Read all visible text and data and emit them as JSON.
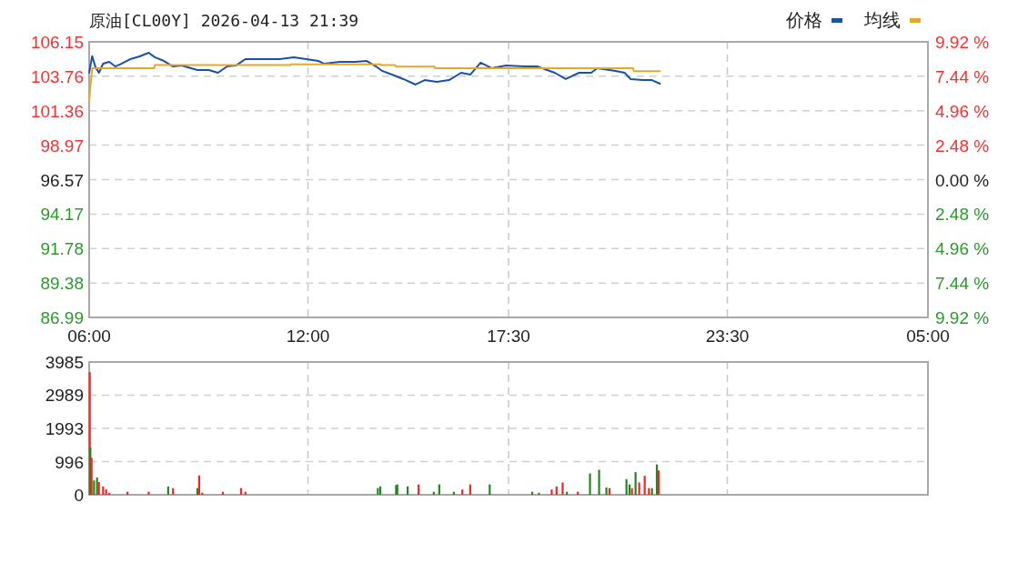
{
  "chart_data": [
    {
      "type": "line",
      "title": "原油[CL00Y] 2026-04-13 21:39",
      "x": [
        "2026-04-13T06:00",
        "2026-04-13T06:05",
        "2026-04-13T06:10",
        "2026-04-13T06:16",
        "2026-04-13T06:23",
        "2026-04-13T06:33",
        "2026-04-13T06:43",
        "2026-04-13T06:53",
        "2026-04-13T07:08",
        "2026-04-13T07:23",
        "2026-04-13T07:38",
        "2026-04-13T07:48",
        "2026-04-13T08:03",
        "2026-04-13T08:18",
        "2026-04-13T08:32",
        "2026-04-13T08:58",
        "2026-04-13T09:17",
        "2026-04-13T09:32",
        "2026-04-13T09:47",
        "2026-04-13T10:02",
        "2026-04-13T10:17",
        "2026-04-13T10:47",
        "2026-04-13T11:13",
        "2026-04-13T11:37",
        "2026-04-13T11:57",
        "2026-04-13T12:17",
        "2026-04-13T12:27",
        "2026-04-13T12:52",
        "2026-04-13T13:17",
        "2026-04-13T13:37",
        "2026-04-13T13:52",
        "2026-04-13T14:02",
        "2026-04-13T14:22",
        "2026-04-13T14:37",
        "2026-04-13T14:57",
        "2026-04-13T15:12",
        "2026-04-13T15:32",
        "2026-04-13T15:52",
        "2026-04-13T16:12",
        "2026-04-13T16:27",
        "2026-04-13T16:44",
        "2026-04-13T17:02",
        "2026-04-13T17:26",
        "2026-04-13T17:56",
        "2026-04-13T18:17",
        "2026-04-13T18:46",
        "2026-04-13T19:04",
        "2026-04-13T19:26",
        "2026-04-13T19:46",
        "2026-04-13T19:56",
        "2026-04-13T20:26",
        "2026-04-13T20:41",
        "2026-04-13T20:51",
        "2026-04-13T21:11",
        "2026-04-13T21:26",
        "2026-04-13T21:39"
      ],
      "series": [
        {
          "name": "价格",
          "color": "#1a50a8",
          "values": [
            104.0,
            105.16,
            104.44,
            104.0,
            104.63,
            104.76,
            104.44,
            104.63,
            104.95,
            105.14,
            105.39,
            105.08,
            104.82,
            104.44,
            104.51,
            104.19,
            104.19,
            104.0,
            104.44,
            104.51,
            104.95,
            104.95,
            104.95,
            105.08,
            104.95,
            104.82,
            104.63,
            104.76,
            104.76,
            104.82,
            104.44,
            104.13,
            103.81,
            103.56,
            103.18,
            103.49,
            103.37,
            103.49,
            104.0,
            103.87,
            104.7,
            104.32,
            104.51,
            104.44,
            104.44,
            104.0,
            103.56,
            104.0,
            104.0,
            104.32,
            104.13,
            104.0,
            103.56,
            103.49,
            103.49,
            103.24
          ]
        },
        {
          "name": "均线",
          "color": "#e6a82a",
          "x": [
            "2026-04-13T06:00",
            "2026-04-13T06:05",
            "2026-04-13T07:47",
            "2026-04-13T07:48",
            "2026-04-13T11:31",
            "2026-04-13T11:32",
            "2026-04-13T13:59",
            "2026-04-13T14:00",
            "2026-04-13T14:23",
            "2026-04-13T14:25",
            "2026-04-13T15:28",
            "2026-04-13T15:29",
            "2026-04-13T20:55",
            "2026-04-13T20:56",
            "2026-04-13T21:39"
          ],
          "values": [
            102.1,
            104.32,
            104.32,
            104.53,
            104.53,
            104.59,
            104.59,
            104.53,
            104.53,
            104.42,
            104.42,
            104.32,
            104.32,
            104.11,
            104.11
          ]
        }
      ],
      "xlim": [
        "2026-04-13T06:00",
        "2026-04-14T05:00"
      ],
      "xticks": [
        {
          "value": "2026-04-13T06:00",
          "label": "06:00"
        },
        {
          "value": "2026-04-13T12:00",
          "label": "12:00"
        },
        {
          "value": "2026-04-13T17:30",
          "label": "17:30"
        },
        {
          "value": "2026-04-13T23:30",
          "label": "23:30"
        },
        {
          "value": "2026-04-14T05:00",
          "label": "05:00"
        }
      ],
      "ylim": [
        86.99,
        106.15
      ],
      "yticks": [
        86.99,
        89.38,
        91.78,
        94.17,
        96.57,
        98.97,
        101.36,
        103.76,
        106.15
      ],
      "y2lim": [
        -9.92,
        9.92
      ],
      "y2ticks": [
        {
          "value": -9.92,
          "label": "9.92 %"
        },
        {
          "value": -7.44,
          "label": "7.44 %"
        },
        {
          "value": -4.96,
          "label": "4.96 %"
        },
        {
          "value": -2.48,
          "label": "2.48 %"
        },
        {
          "value": 0,
          "label": "0.00 %"
        },
        {
          "value": 2.48,
          "label": "2.48 %"
        },
        {
          "value": 4.96,
          "label": "4.96 %"
        },
        {
          "value": 7.44,
          "label": "7.44 %"
        },
        {
          "value": 9.92,
          "label": "9.92 %"
        }
      ],
      "grid": true,
      "legend": "top right"
    },
    {
      "type": "bar",
      "x": [
        "2026-04-13T06:01",
        "2026-04-13T06:02",
        "2026-04-13T06:04",
        "2026-04-13T06:08",
        "2026-04-13T06:13",
        "2026-04-13T06:16",
        "2026-04-13T06:23",
        "2026-04-13T06:28",
        "2026-04-13T06:33",
        "2026-04-13T07:03",
        "2026-04-13T07:38",
        "2026-04-13T08:10",
        "2026-04-13T08:18",
        "2026-04-13T08:58",
        "2026-04-13T09:01",
        "2026-04-13T09:06",
        "2026-04-13T09:40",
        "2026-04-13T10:10",
        "2026-04-13T10:17",
        "2026-04-13T13:55",
        "2026-04-13T13:59",
        "2026-04-13T14:25",
        "2026-04-13T14:27",
        "2026-04-13T14:44",
        "2026-04-13T15:02",
        "2026-04-13T15:27",
        "2026-04-13T15:36",
        "2026-04-13T16:00",
        "2026-04-13T16:14",
        "2026-04-13T16:27",
        "2026-04-13T16:59",
        "2026-04-13T18:09",
        "2026-04-13T18:20",
        "2026-04-13T18:41",
        "2026-04-13T18:49",
        "2026-04-13T18:59",
        "2026-04-13T19:06",
        "2026-04-13T19:24",
        "2026-04-13T19:44",
        "2026-04-13T19:59",
        "2026-04-13T20:11",
        "2026-04-13T20:16",
        "2026-04-13T20:44",
        "2026-04-13T20:49",
        "2026-04-13T20:53",
        "2026-04-13T20:59",
        "2026-04-13T21:05",
        "2026-04-13T21:14",
        "2026-04-13T21:21",
        "2026-04-13T21:26",
        "2026-04-13T21:34",
        "2026-04-13T21:37"
      ],
      "values": [
        3680,
        1430,
        1110,
        430,
        520,
        380,
        250,
        160,
        60,
        90,
        90,
        250,
        200,
        200,
        580,
        60,
        90,
        200,
        90,
        200,
        250,
        290,
        310,
        250,
        310,
        90,
        310,
        90,
        160,
        310,
        310,
        90,
        60,
        160,
        250,
        370,
        90,
        90,
        640,
        750,
        220,
        200,
        470,
        310,
        200,
        680,
        370,
        570,
        200,
        200,
        910,
        730
      ],
      "colors": [
        "#ff2020",
        "#1e8a1e",
        "#ff2020",
        "#1e8a1e",
        "#1e8a1e",
        "#ff2020",
        "#ff2020",
        "#ff2020",
        "#ff2020",
        "#ff2020",
        "#ff2020",
        "#1e8a1e",
        "#ff2020",
        "#1e8a1e",
        "#ff2020",
        "#ff2020",
        "#ff2020",
        "#ff2020",
        "#ff2020",
        "#1e8a1e",
        "#1e8a1e",
        "#1e8a1e",
        "#1e8a1e",
        "#1e8a1e",
        "#ff2020",
        "#1e8a1e",
        "#1e8a1e",
        "#1e8a1e",
        "#ff2020",
        "#ff2020",
        "#1e8a1e",
        "#1e8a1e",
        "#1e8a1e",
        "#ff2020",
        "#ff2020",
        "#ff2020",
        "#1e8a1e",
        "#ff2020",
        "#1e8a1e",
        "#1e8a1e",
        "#1e8a1e",
        "#ff2020",
        "#1e8a1e",
        "#1e8a1e",
        "#ff2020",
        "#1e8a1e",
        "#ff2020",
        "#ff2020",
        "#ff2020",
        "#1e8a1e",
        "#1e8a1e",
        "#ff2020"
      ],
      "xlim": [
        "2026-04-13T06:00",
        "2026-04-14T05:00"
      ],
      "xticks": [
        {
          "value": "2026-04-13T06:00",
          "label": null
        },
        {
          "value": "2026-04-13T12:00",
          "label": null
        },
        {
          "value": "2026-04-13T17:30",
          "label": null
        },
        {
          "value": "2026-04-13T23:30",
          "label": null
        },
        {
          "value": "2026-04-14T05:00",
          "label": null
        }
      ],
      "ylim": [
        0,
        3985
      ],
      "yticks": [
        0,
        996,
        1993,
        2989,
        3985
      ],
      "grid": true,
      "tick_labels": "y"
    }
  ]
}
